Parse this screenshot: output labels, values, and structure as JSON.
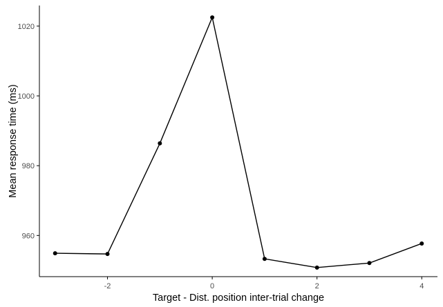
{
  "chart_data": {
    "type": "line",
    "title": "",
    "xlabel": "Target - Dist. position inter-trial change",
    "ylabel": "Mean response time (ms)",
    "x": [
      -3,
      -2,
      -1,
      0,
      1,
      2,
      3,
      4
    ],
    "y": [
      954.9,
      954.7,
      986.4,
      1022.5,
      953.3,
      950.8,
      952.1,
      957.7
    ],
    "xlim": [
      -3.3,
      4.3
    ],
    "ylim": [
      948.2,
      1025.9
    ],
    "xticks": [
      -2,
      0,
      2,
      4
    ],
    "xtick_labels": [
      "-2",
      "0",
      "2",
      "4"
    ],
    "yticks": [
      960,
      980,
      1000,
      1020
    ],
    "ytick_labels": [
      "960",
      "980",
      "1000",
      "1020"
    ],
    "grid": false,
    "legend": "none",
    "colors": {
      "line": "#000000",
      "point": "#000000",
      "axis": "#000000",
      "tick_text": "#4d4d4d"
    }
  }
}
